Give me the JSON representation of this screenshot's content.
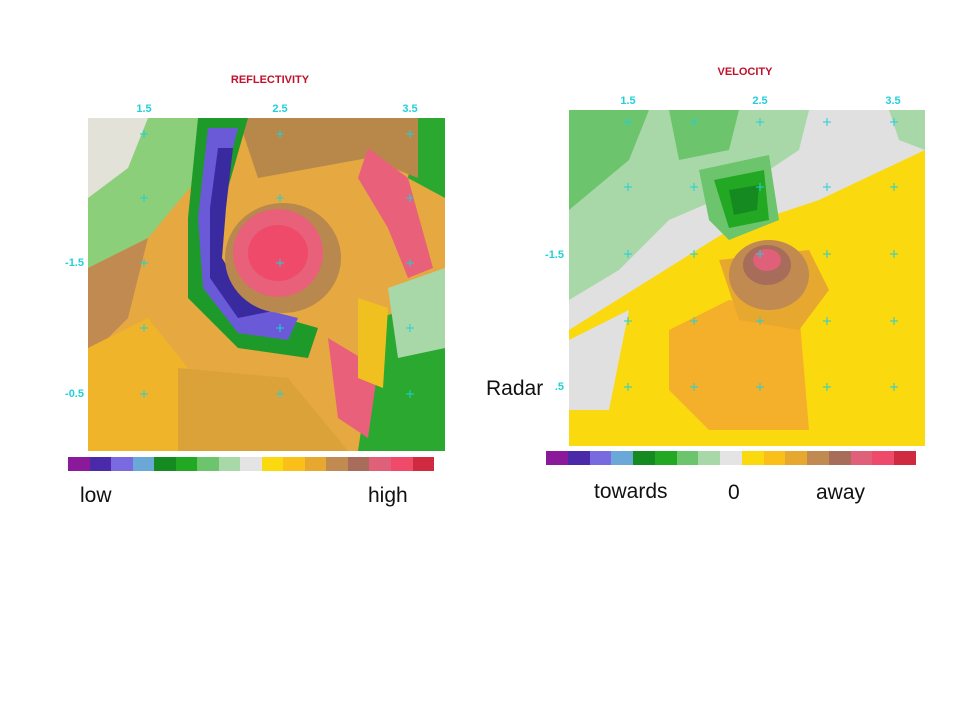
{
  "reflectivity": {
    "title": "REFLECTIVITY",
    "x_ticks": [
      "1.5",
      "2.5",
      "3.5"
    ],
    "y_ticks": [
      "-1.5",
      "-0.5"
    ],
    "scale_colors": [
      "#8a1a9a",
      "#4a2aa8",
      "#7a6ae0",
      "#6aa8d8",
      "#148a20",
      "#22a822",
      "#6cc46c",
      "#a8d8a8",
      "#e4e4e4",
      "#fbd90f",
      "#fbbf1a",
      "#e6a82e",
      "#c08a50",
      "#a86c5a",
      "#e0607a",
      "#f04a6a",
      "#d02a40"
    ],
    "low_label": "low",
    "high_label": "high"
  },
  "velocity": {
    "title": "VELOCITY",
    "x_ticks": [
      "1.5",
      "2.5",
      "3.5"
    ],
    "y_ticks": [
      "-1.5",
      ".5"
    ],
    "scale_colors": [
      "#8a1a9a",
      "#4a2aa8",
      "#7a6ae0",
      "#6aa8d8",
      "#148a20",
      "#22a822",
      "#6cc46c",
      "#a8d8a8",
      "#e4e4e4",
      "#fbd90f",
      "#fbbf1a",
      "#e6a82e",
      "#c08a50",
      "#a86c5a",
      "#e0607a",
      "#f04a6a",
      "#d02a40"
    ],
    "towards_label": "towards",
    "zero_label": "0",
    "away_label": "away"
  },
  "overlay_text": "Radar"
}
